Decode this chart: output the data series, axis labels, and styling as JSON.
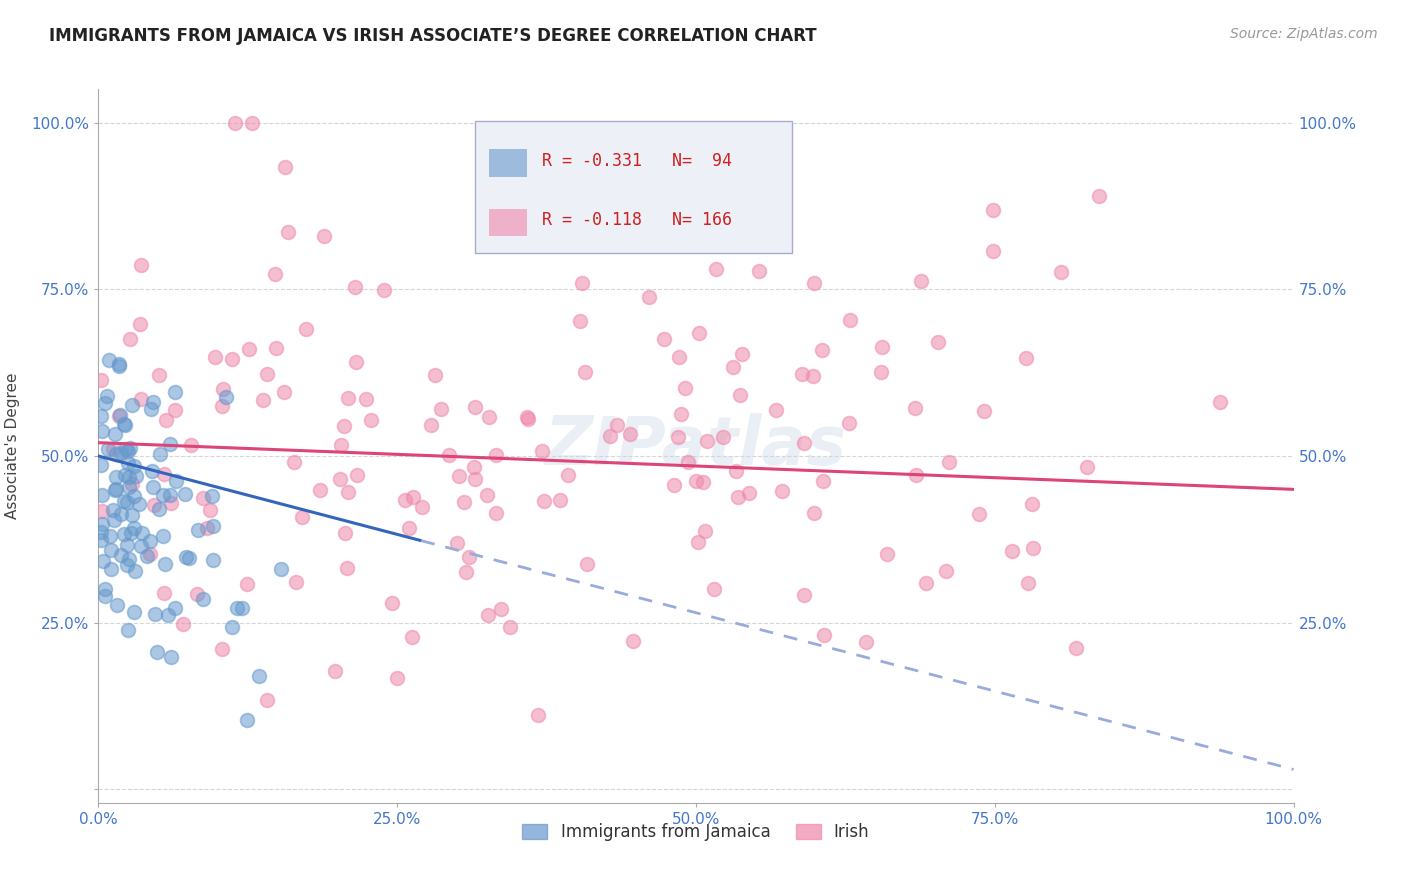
{
  "title": "IMMIGRANTS FROM JAMAICA VS IRISH ASSOCIATE’S DEGREE CORRELATION CHART",
  "source": "Source: ZipAtlas.com",
  "ylabel": "Associate's Degree",
  "series1_label": "Immigrants from Jamaica",
  "series2_label": "Irish",
  "series1_color": "#6699cc",
  "series2_color": "#ee88aa",
  "series1_R": "-0.331",
  "series1_N": "94",
  "series2_R": "-0.118",
  "series2_N": "166",
  "xlim": [
    0.0,
    1.0
  ],
  "ylim": [
    -0.02,
    1.05
  ],
  "xticks": [
    0.0,
    0.25,
    0.5,
    0.75,
    1.0
  ],
  "xticklabels": [
    "0.0%",
    "25.0%",
    "50.0%",
    "75.0%",
    "100.0%"
  ],
  "yticks": [
    0.0,
    0.25,
    0.5,
    0.75,
    1.0
  ],
  "yticklabels": [
    "",
    "25.0%",
    "50.0%",
    "75.0%",
    "100.0%"
  ],
  "background_color": "#ffffff",
  "grid_color": "#cccccc",
  "trend1_line_color": "#3366bb",
  "trend2_line_color": "#dd4477",
  "trend1_ext_color": "#99aadd",
  "label_color": "#4477cc",
  "title_fontsize": 12,
  "axis_label_fontsize": 11,
  "tick_fontsize": 11,
  "legend_fontsize": 12,
  "source_fontsize": 10,
  "marker_size": 10,
  "marker_alpha": 0.55,
  "watermark_color": "#c8d8e8",
  "watermark_alpha": 0.4
}
